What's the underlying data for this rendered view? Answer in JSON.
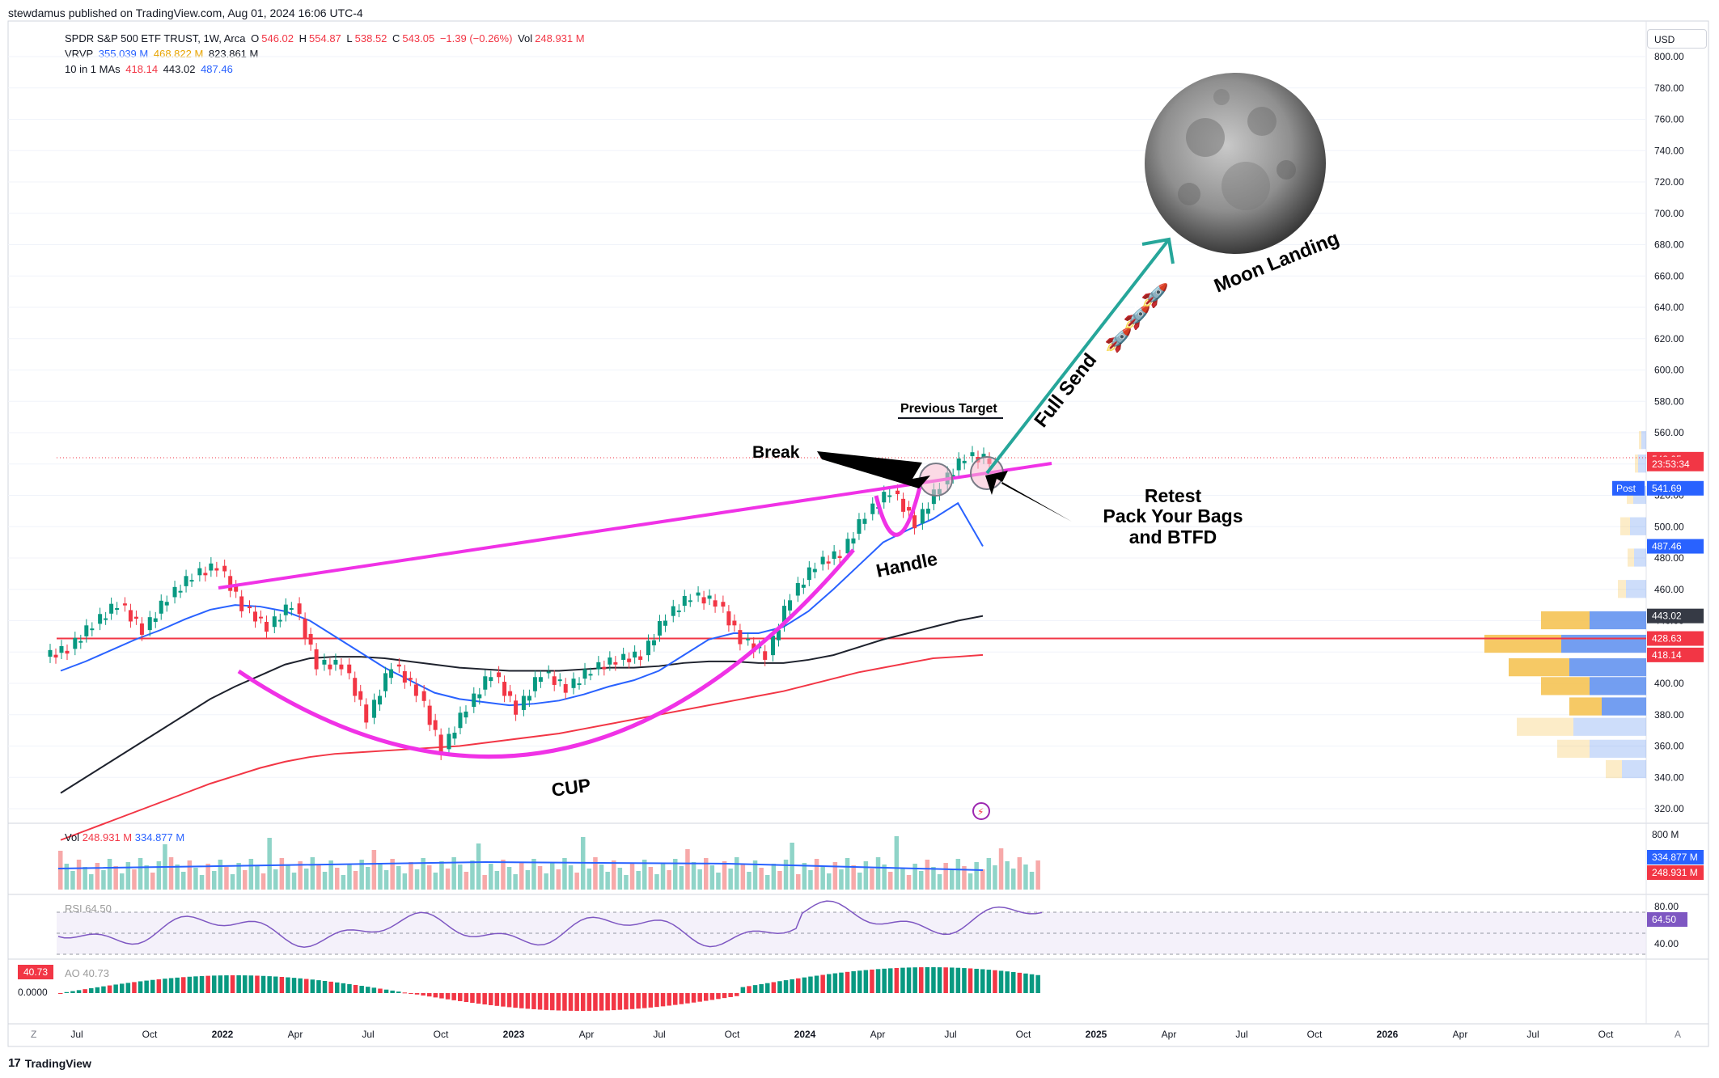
{
  "header": {
    "publisher": "stewdamus published on TradingView.com, Aug 01, 2024 16:06 UTC-4"
  },
  "legend": {
    "symbol": "SPDR S&P 500 ETF TRUST, 1W, Arca",
    "o_label": "O",
    "o": "546.02",
    "h_label": "H",
    "h": "554.87",
    "l_label": "L",
    "l": "538.52",
    "c_label": "C",
    "c": "543.05",
    "change": "−1.39 (−0.26%)",
    "vol_label": "Vol",
    "vol": "248.931 M",
    "vrvp_label": "VRVP",
    "vrvp1": "355.039 M",
    "vrvp2": "468.822 M",
    "vrvp3": "823.861 M",
    "ma_label": "10 in 1 MAs",
    "ma1": "418.14",
    "ma2": "443.02",
    "ma3": "487.46"
  },
  "currency": "USD",
  "price_axis": {
    "ticks": [
      "800.00",
      "780.00",
      "760.00",
      "740.00",
      "720.00",
      "700.00",
      "680.00",
      "660.00",
      "640.00",
      "620.00",
      "600.00",
      "580.00",
      "560.00",
      "540.00",
      "520.00",
      "500.00",
      "480.00",
      "460.00",
      "440.00",
      "420.00",
      "400.00",
      "380.00",
      "360.00",
      "340.00",
      "320.00"
    ],
    "tick_values": [
      800,
      780,
      760,
      740,
      720,
      700,
      680,
      660,
      640,
      620,
      600,
      580,
      560,
      540,
      520,
      500,
      480,
      460,
      440,
      420,
      400,
      380,
      360,
      340,
      320
    ],
    "badges": [
      {
        "text": "543.05",
        "value": 543.05,
        "color": "#f23645"
      },
      {
        "text": "23:53:34",
        "value": 540.0,
        "color": "#f23645"
      },
      {
        "text": "541.69",
        "value": 524.5,
        "color": "#2962ff",
        "prefix": "Post"
      },
      {
        "text": "487.46",
        "value": 487.46,
        "color": "#2962ff"
      },
      {
        "text": "443.02",
        "value": 443.02,
        "color": "#363a45"
      },
      {
        "text": "428.63",
        "value": 428.63,
        "color": "#f23645"
      },
      {
        "text": "418.14",
        "value": 418.14,
        "color": "#f23645"
      }
    ]
  },
  "time_axis": {
    "labels": [
      "Jul",
      "Oct",
      "2022",
      "Apr",
      "Jul",
      "Oct",
      "2023",
      "Apr",
      "Jul",
      "Oct",
      "2024",
      "Apr",
      "Jul",
      "Oct",
      "2025",
      "Apr",
      "Jul",
      "Oct",
      "2026",
      "Apr",
      "Jul",
      "Oct"
    ],
    "bold": [
      false,
      false,
      true,
      false,
      false,
      false,
      true,
      false,
      false,
      false,
      true,
      false,
      false,
      false,
      true,
      false,
      false,
      false,
      true,
      false,
      false,
      false
    ],
    "left_button": "Z",
    "right_button": "A"
  },
  "annotations": {
    "break": "Break",
    "previous_target": "Previous Target",
    "retest_line1": "Retest",
    "retest_line2": "Pack Your Bags",
    "retest_line3": "and BTFD",
    "handle": "Handle",
    "cup": "CUP",
    "full_send": "Full Send",
    "moon_landing": "Moon Landing"
  },
  "panes": {
    "vol": {
      "label": "Vol",
      "v1": "248.931 M",
      "v2": "334.877 M",
      "axis": "800 M",
      "badge_blue": "334.877 M",
      "badge_red": "248.931 M"
    },
    "rsi": {
      "label": "RSI",
      "value": "64.50",
      "axis_high": "80.00",
      "axis_low": "40.00",
      "badge": "64.50"
    },
    "ao": {
      "label": "AO",
      "value": "40.73",
      "badge": "40.73",
      "axis_zero": "0.0000"
    }
  },
  "footer": {
    "brand": "TradingView"
  },
  "colors": {
    "up": "#089981",
    "down": "#f23645",
    "magenta": "#f032e6",
    "teal": "#26a69a",
    "ma_blue": "#2962ff",
    "ma_black": "#1e222d",
    "ma_red": "#f23645",
    "hline": "#f23645"
  },
  "chart_data": {
    "type": "candlestick",
    "interval": "1W",
    "x": [
      "2021-06",
      "2021-07",
      "2021-08",
      "2021-09",
      "2021-10",
      "2021-11",
      "2021-12",
      "2022-01",
      "2022-02",
      "2022-03",
      "2022-04",
      "2022-05",
      "2022-06",
      "2022-07",
      "2022-08",
      "2022-09",
      "2022-10",
      "2022-11",
      "2022-12",
      "2023-01",
      "2023-02",
      "2023-03",
      "2023-04",
      "2023-05",
      "2023-06",
      "2023-07",
      "2023-08",
      "2023-09",
      "2023-10",
      "2023-11",
      "2023-12",
      "2024-01",
      "2024-02",
      "2024-03",
      "2024-04",
      "2024-05",
      "2024-06",
      "2024-07"
    ],
    "close": [
      422,
      438,
      451,
      434,
      455,
      469,
      475,
      449,
      436,
      451,
      412,
      412,
      378,
      412,
      395,
      358,
      385,
      407,
      383,
      407,
      397,
      409,
      415,
      418,
      443,
      456,
      452,
      428,
      418,
      456,
      476,
      483,
      508,
      523,
      502,
      527,
      545,
      543
    ],
    "ma_fast": [
      408,
      414,
      421,
      428,
      434,
      441,
      447,
      450,
      449,
      446,
      440,
      430,
      420,
      410,
      402,
      394,
      390,
      388,
      386,
      387,
      389,
      393,
      398,
      402,
      408,
      418,
      428,
      432,
      432,
      436,
      446,
      460,
      475,
      490,
      498,
      505,
      515,
      487.46
    ],
    "ma_mid": [
      330,
      340,
      350,
      360,
      370,
      380,
      390,
      398,
      405,
      412,
      416,
      417,
      417,
      416,
      414,
      412,
      410,
      409,
      408,
      408,
      408,
      409,
      410,
      410,
      411,
      413,
      414,
      414,
      413,
      413,
      415,
      418,
      423,
      428,
      432,
      436,
      440,
      443.02
    ],
    "ma_slow": [
      300,
      306,
      312,
      318,
      324,
      330,
      336,
      341,
      346,
      350,
      353,
      355,
      356,
      357,
      358,
      359,
      360,
      362,
      364,
      366,
      368,
      371,
      374,
      377,
      380,
      383,
      386,
      389,
      392,
      395,
      399,
      403,
      407,
      410,
      413,
      416,
      417,
      418.14
    ],
    "horizontal_line": 428.63,
    "ylim": [
      320,
      800
    ]
  }
}
